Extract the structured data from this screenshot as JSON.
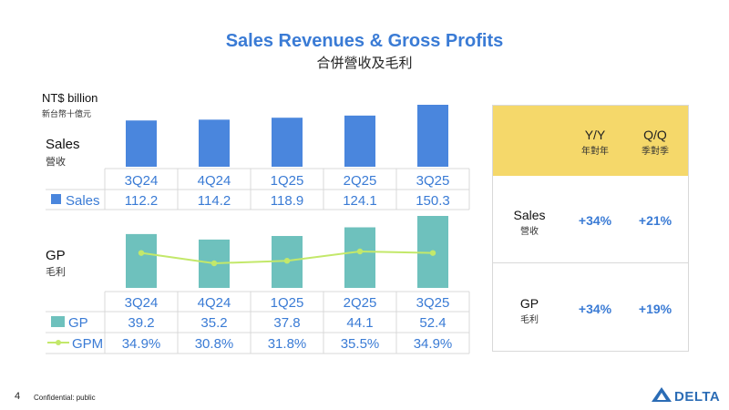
{
  "header": {
    "title": "Sales Revenues & Gross Profits",
    "subtitle": "合併營收及毛利"
  },
  "unit": {
    "label": "NT$ billion",
    "sub": "新台幣十億元"
  },
  "rows": {
    "sales": {
      "label": "Sales",
      "sub": "營收"
    },
    "gp": {
      "label": "GP",
      "sub": "毛利"
    }
  },
  "legend": {
    "sales": "Sales",
    "gp": "GP",
    "gpm": "GPM"
  },
  "colors": {
    "sales_bar": "#4a86dd",
    "gp_bar": "#6ec1bd",
    "gpm_line": "#c3e86a",
    "accent": "#3a7bd5",
    "panel_head": "#f5d86a"
  },
  "chart_data": [
    {
      "type": "bar",
      "categories": [
        "3Q24",
        "4Q24",
        "1Q25",
        "2Q25",
        "3Q25"
      ],
      "series": [
        {
          "name": "Sales",
          "values": [
            112.2,
            114.2,
            118.9,
            124.1,
            150.3
          ]
        }
      ],
      "labels": [
        "112.2",
        "114.2",
        "118.9",
        "124.1",
        "150.3"
      ]
    },
    {
      "type": "bar",
      "categories": [
        "3Q24",
        "4Q24",
        "1Q25",
        "2Q25",
        "3Q25"
      ],
      "series": [
        {
          "name": "GP",
          "values": [
            39.2,
            35.2,
            37.8,
            44.1,
            52.4
          ]
        },
        {
          "name": "GPM",
          "type": "line",
          "values": [
            34.9,
            30.8,
            31.8,
            35.5,
            34.9
          ]
        }
      ],
      "labels": [
        "39.2",
        "35.2",
        "37.8",
        "44.1",
        "52.4"
      ],
      "gpm_labels": [
        "34.9%",
        "30.8%",
        "31.8%",
        "35.5%",
        "34.9%"
      ]
    }
  ],
  "growth_panel": {
    "yy": {
      "label": "Y/Y",
      "sub": "年對年"
    },
    "qq": {
      "label": "Q/Q",
      "sub": "季對季"
    },
    "rows": [
      {
        "label": "Sales",
        "sub": "營收",
        "yy": "+34%",
        "qq": "+21%"
      },
      {
        "label": "GP",
        "sub": "毛利",
        "yy": "+34%",
        "qq": "+19%"
      }
    ]
  },
  "footer": {
    "page": "4",
    "confidential": "Confidential: public",
    "logo_text": "DELTA"
  }
}
